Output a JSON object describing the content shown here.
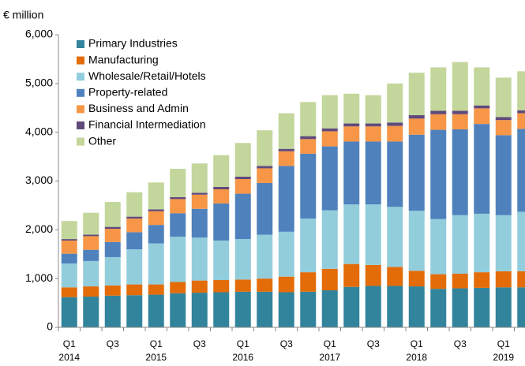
{
  "chart_data": {
    "type": "stacked_bar",
    "y_label": "€ million",
    "categories": [
      "Q1",
      null,
      "Q3",
      null,
      "Q1",
      null,
      "Q3",
      null,
      "Q1",
      null,
      "Q3",
      null,
      "Q1",
      null,
      "Q3",
      null,
      "Q1",
      null,
      "Q3",
      null,
      "Q1",
      null
    ],
    "year_labels": [
      "2014",
      null,
      null,
      null,
      "2015",
      null,
      null,
      null,
      "2016",
      null,
      null,
      null,
      "2017",
      null,
      null,
      null,
      "2018",
      null,
      null,
      null,
      "2019",
      null
    ],
    "series": [
      {
        "name": "Primary Industries",
        "color": "#31849b",
        "values": [
          620,
          630,
          650,
          660,
          670,
          700,
          710,
          720,
          730,
          730,
          720,
          730,
          760,
          830,
          850,
          850,
          840,
          790,
          800,
          810,
          820,
          820
        ]
      },
      {
        "name": "Manufacturing",
        "color": "#e36c09",
        "values": [
          200,
          210,
          210,
          220,
          210,
          230,
          250,
          250,
          250,
          270,
          320,
          400,
          440,
          470,
          430,
          390,
          320,
          300,
          300,
          320,
          330,
          330
        ]
      },
      {
        "name": "Wholesale/Retail/Hotels",
        "color": "#92cddc",
        "values": [
          490,
          520,
          580,
          720,
          840,
          930,
          880,
          810,
          830,
          900,
          920,
          1100,
          1200,
          1220,
          1240,
          1230,
          1230,
          1130,
          1200,
          1200,
          1150,
          1220
        ]
      },
      {
        "name": "Property-related",
        "color": "#4f81bd",
        "values": [
          200,
          230,
          310,
          350,
          380,
          480,
          590,
          760,
          930,
          1060,
          1350,
          1330,
          1310,
          1290,
          1290,
          1340,
          1560,
          1830,
          1760,
          1840,
          1640,
          1700
        ]
      },
      {
        "name": "Business and Admin",
        "color": "#f79646",
        "values": [
          270,
          280,
          270,
          280,
          280,
          290,
          290,
          290,
          300,
          300,
          300,
          300,
          310,
          310,
          310,
          320,
          330,
          320,
          310,
          320,
          310,
          320
        ]
      },
      {
        "name": "Financial Intermediation",
        "color": "#604a7b",
        "values": [
          30,
          30,
          40,
          40,
          40,
          40,
          40,
          50,
          50,
          50,
          50,
          60,
          60,
          60,
          60,
          70,
          70,
          70,
          70,
          60,
          60,
          60
        ]
      },
      {
        "name": "Other",
        "color": "#c3d69b",
        "values": [
          370,
          450,
          510,
          500,
          550,
          580,
          600,
          650,
          690,
          730,
          730,
          700,
          680,
          610,
          580,
          800,
          870,
          890,
          1000,
          780,
          810,
          800
        ]
      }
    ],
    "ylim": [
      0,
      6000
    ],
    "yticks": [
      0,
      {
        "value": 1000,
        "label": "1,000"
      },
      {
        "value": 2000,
        "label": "2,000"
      },
      {
        "value": 3000,
        "label": "3,000"
      },
      {
        "value": 4000,
        "label": "4,000"
      },
      {
        "value": 5000,
        "label": "5,000"
      },
      {
        "value": 6000,
        "label": "6,000"
      }
    ]
  }
}
